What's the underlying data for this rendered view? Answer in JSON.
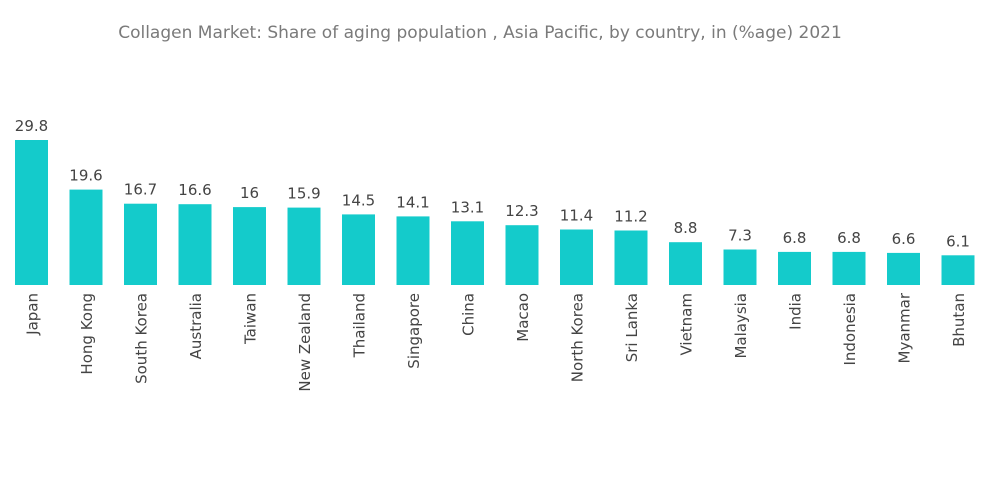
{
  "chart_data": {
    "type": "bar",
    "title": "Collagen Market: Share of aging population , Asia Pacific, by country, in (%age)  2021",
    "xlabel": "",
    "ylabel": "",
    "categories": [
      "Japan",
      "Hong Kong",
      "South Korea",
      "Australia",
      "Taiwan",
      "New Zealand",
      "Thailand",
      "Singapore",
      "China",
      "Macao",
      "North Korea",
      "Sri Lanka",
      "Vietnam",
      "Malaysia",
      "India",
      "Indonesia",
      "Myanmar",
      "Bhutan"
    ],
    "values": [
      29.8,
      19.6,
      16.7,
      16.6,
      16,
      15.9,
      14.5,
      14.1,
      13.1,
      12.3,
      11.4,
      11.2,
      8.8,
      7.3,
      6.8,
      6.8,
      6.6,
      6.1
    ],
    "value_labels": [
      "29.8",
      "19.6",
      "16.7",
      "16.6",
      "16",
      "15.9",
      "14.5",
      "14.1",
      "13.1",
      "12.3",
      "11.4",
      "11.2",
      "8.8",
      "7.3",
      "6.8",
      "6.8",
      "6.6",
      "6.1"
    ],
    "ylim": [
      0,
      29.8
    ],
    "grid": false,
    "legend": "none",
    "colors": {
      "bar": "#14cbcb",
      "title": "#7a7a7a",
      "text": "#444444"
    }
  }
}
